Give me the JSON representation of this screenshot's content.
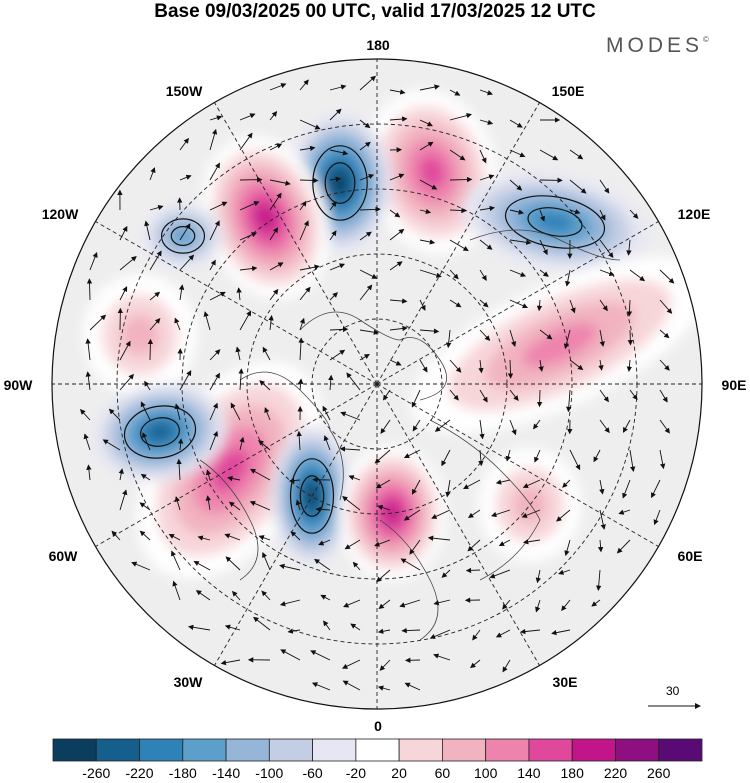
{
  "header": {
    "title": "Base 09/03/2025 00 UTC, valid 17/03/2025 12 UTC",
    "brand": "MODES",
    "brand_mark": "©"
  },
  "map": {
    "projection": "north-polar-stereographic",
    "longitude_labels": {
      "top": "180",
      "top_right": "150E",
      "right_upper": "120E",
      "right": "90E",
      "right_lower": "60E",
      "bottom_right": "30E",
      "bottom": "0",
      "bottom_left": "30W",
      "left_lower": "60W",
      "left": "90W",
      "left_upper": "120W",
      "top_left": "150W"
    },
    "vector_scale_label": "30",
    "anomaly_centers": [
      {
        "name": "central-pacific-high",
        "sign": "positive",
        "level": 140
      },
      {
        "name": "east-pacific-low",
        "sign": "negative",
        "level": -220
      },
      {
        "name": "bering-high",
        "sign": "positive",
        "level": 180
      },
      {
        "name": "alaska-low",
        "sign": "negative",
        "level": -100
      },
      {
        "name": "siberia-low",
        "sign": "negative",
        "level": -140
      },
      {
        "name": "eurasia-high",
        "sign": "positive",
        "level": 100
      },
      {
        "name": "canada-high",
        "sign": "positive",
        "level": 60
      },
      {
        "name": "greenland-high",
        "sign": "positive",
        "level": 140
      },
      {
        "name": "labrador-low",
        "sign": "negative",
        "level": -180
      },
      {
        "name": "north-atlantic-low",
        "sign": "negative",
        "level": -220
      },
      {
        "name": "scandinavia-high",
        "sign": "positive",
        "level": 180
      },
      {
        "name": "europe-high",
        "sign": "positive",
        "level": 60
      }
    ]
  },
  "colorbar": {
    "tick_labels": [
      "-260",
      "-220",
      "-180",
      "-140",
      "-100",
      "-60",
      "-20",
      "20",
      "60",
      "100",
      "140",
      "180",
      "220",
      "260"
    ],
    "colors": [
      "#0b3d5e",
      "#155f8c",
      "#2e82b8",
      "#5d9fcb",
      "#95b6d9",
      "#c3cde4",
      "#e6e7f2",
      "#ffffff",
      "#f7d6d9",
      "#f1b3bf",
      "#ee84ae",
      "#e0489c",
      "#c3158a",
      "#8e1080",
      "#5a0a75"
    ]
  }
}
